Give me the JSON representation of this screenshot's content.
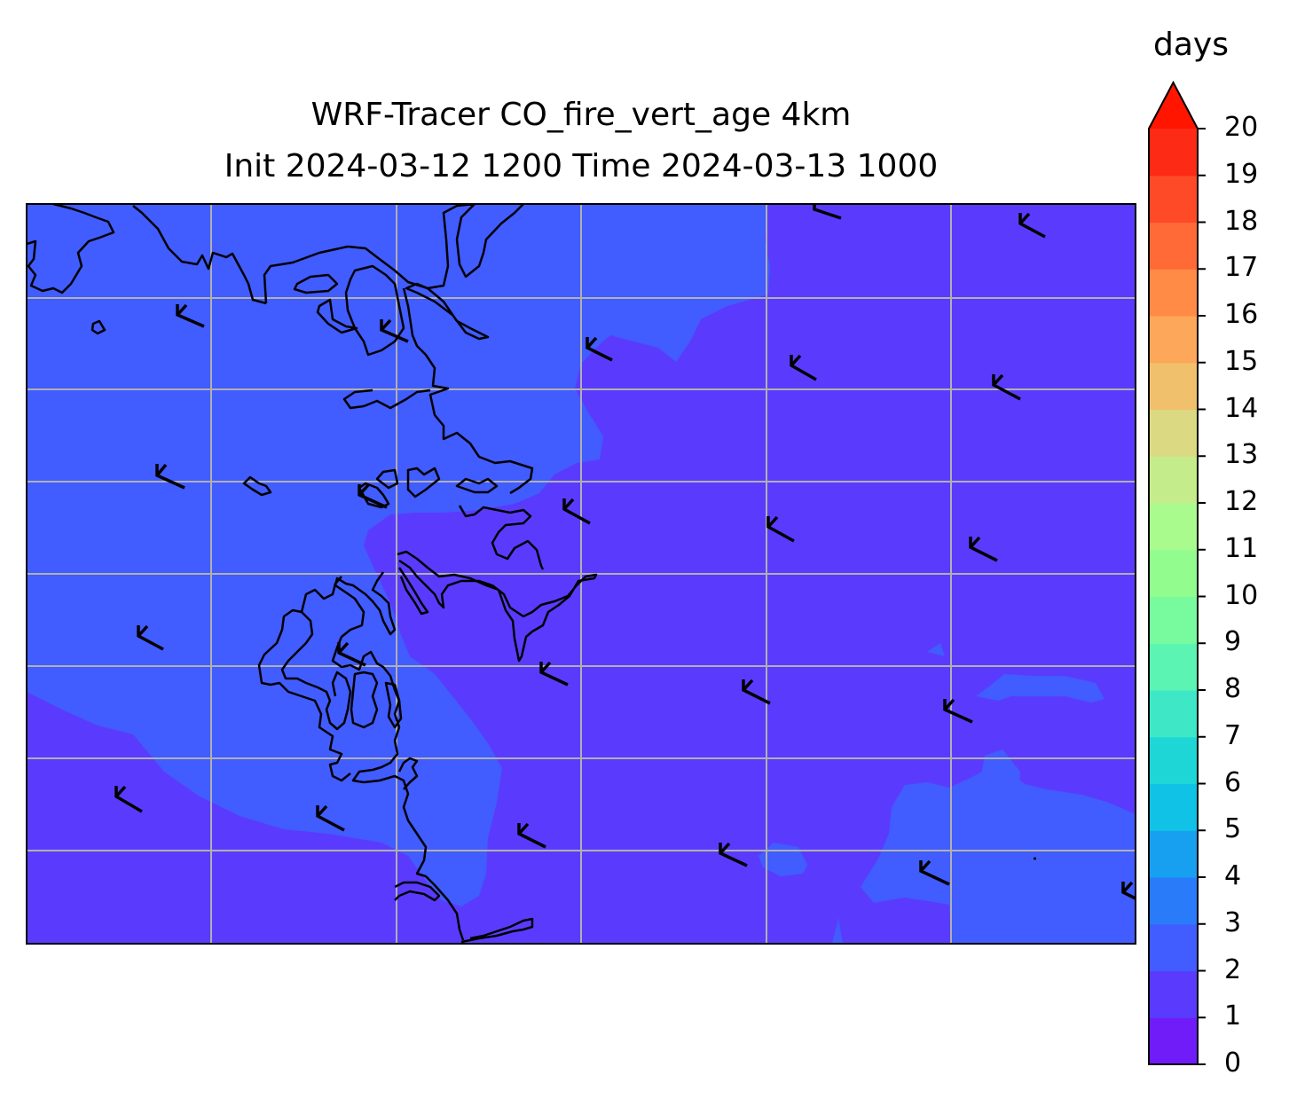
{
  "title": {
    "line1": "WRF-Tracer CO_fire_vert_age 4km",
    "line2": "Init 2024-03-12 1200 Time 2024-03-13 1000"
  },
  "colorbar": {
    "unit": "days",
    "ticks": [
      "0",
      "1",
      "2",
      "3",
      "4",
      "5",
      "6",
      "7",
      "8",
      "9",
      "10",
      "11",
      "12",
      "13",
      "14",
      "15",
      "16",
      "17",
      "18",
      "19",
      "20"
    ],
    "extend": "max",
    "colors": [
      "#6f1cf8",
      "#5a3bfd",
      "#415cff",
      "#2a7bfa",
      "#18a0f0",
      "#0fc2e6",
      "#1ed6d6",
      "#3ee7c6",
      "#5cf4b2",
      "#78fb9e",
      "#92fd8e",
      "#aafb8e",
      "#c4ec8a",
      "#dbd982",
      "#f1c06c",
      "#fda75a",
      "#ff8b46",
      "#ff6a36",
      "#ff4a28",
      "#fd2a15",
      "#ff1500"
    ]
  },
  "map": {
    "background_color": "#5a3bfd",
    "region_color": "#415cff",
    "grid_color": "#b0b0b0",
    "coastline_color": "#000000",
    "grid": "on"
  }
}
